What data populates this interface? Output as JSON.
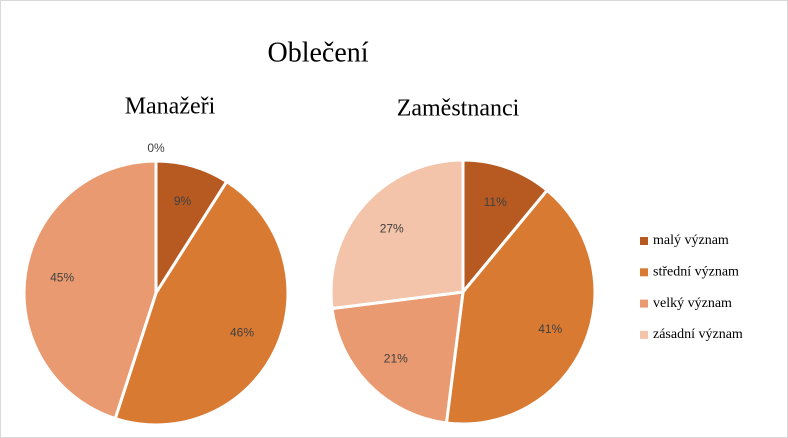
{
  "title": "Oblečení",
  "chart_data": [
    {
      "type": "pie",
      "title": "Manažeři",
      "categories": [
        "malý význam",
        "střední význam",
        "velký význam",
        "zásadní význam"
      ],
      "values": [
        9,
        46,
        45,
        0
      ],
      "value_labels": [
        "9%",
        "46%",
        "45%",
        "0%"
      ],
      "colors": [
        "#b65a22",
        "#d97a33",
        "#e99a70",
        "#f3c3aa"
      ]
    },
    {
      "type": "pie",
      "title": "Zaměstnanci",
      "categories": [
        "malý význam",
        "střední význam",
        "velký význam",
        "zásadní význam"
      ],
      "values": [
        11,
        41,
        21,
        27
      ],
      "value_labels": [
        "11%",
        "41%",
        "21%",
        "27%"
      ],
      "colors": [
        "#b65a22",
        "#d97a33",
        "#e99a70",
        "#f3c3aa"
      ]
    }
  ],
  "legend": "right"
}
